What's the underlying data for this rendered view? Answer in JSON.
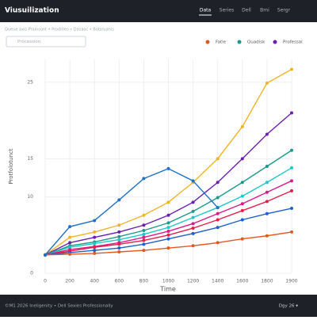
{
  "header": {
    "title": "Viusuilization",
    "nav": [
      "Data",
      "Series",
      "Dell",
      "Bmi",
      "Sergr"
    ]
  },
  "breadcrumb": "Queue axis Prainsont • Prodities • Dasaoc • Botsruanis",
  "search": {
    "placeholder": "Procession"
  },
  "footer": {
    "left": "©M1 2026 Ineligenity • Dell Sexies Professionally",
    "right": "Dgy 26 ▾"
  },
  "chart_data": {
    "type": "line",
    "x_label": "Time",
    "y_label": "Protfolotunct",
    "categories": [
      "0",
      "200",
      "400",
      "600",
      "800",
      "1000",
      "1200",
      "1400",
      "1600",
      "1800",
      "1900"
    ],
    "ylim": [
      0,
      28
    ],
    "yticks": [
      0,
      10,
      15,
      25
    ],
    "grid": true,
    "series": [
      {
        "color": "#f0b429",
        "values": [
          2.4,
          4.7,
          5.4,
          6.3,
          7.6,
          9.3,
          11.9,
          15.0,
          19.2,
          24.9,
          26.7
        ]
      },
      {
        "name": "Professal",
        "color": "#6a1fb0",
        "values": [
          2.4,
          4.0,
          4.7,
          5.4,
          6.3,
          7.6,
          9.3,
          11.9,
          15.0,
          18.2,
          21.0
        ]
      },
      {
        "name": "Quadisk",
        "color": "#1a9a8a",
        "values": [
          2.4,
          3.6,
          4.1,
          4.8,
          5.6,
          6.6,
          8.1,
          9.9,
          11.9,
          14.0,
          16.1
        ]
      },
      {
        "color": "#1cc8c8",
        "values": [
          2.4,
          3.4,
          3.9,
          4.4,
          5.1,
          6.0,
          7.3,
          8.6,
          10.1,
          11.9,
          13.8
        ]
      },
      {
        "color": "#d81b8c",
        "values": [
          2.4,
          3.1,
          3.5,
          4.0,
          4.7,
          5.5,
          6.5,
          7.8,
          9.1,
          10.6,
          12.1
        ]
      },
      {
        "color": "#e0204a",
        "values": [
          2.4,
          2.9,
          3.4,
          3.8,
          4.3,
          5.0,
          5.9,
          7.0,
          8.2,
          9.4,
          10.8
        ]
      },
      {
        "color": "#1f5fc8",
        "values": [
          2.4,
          2.7,
          3.0,
          3.3,
          3.8,
          4.5,
          5.2,
          6.0,
          7.0,
          7.8,
          8.5
        ]
      },
      {
        "name": "Fatle",
        "color": "#e05a20",
        "values": [
          2.4,
          2.5,
          2.6,
          2.8,
          3.0,
          3.3,
          3.6,
          4.0,
          4.5,
          4.9,
          5.4
        ]
      },
      {
        "color": "#2070c8",
        "values": [
          2.4,
          6.1,
          6.9,
          9.6,
          12.4,
          13.7,
          12.1,
          8.6,
          null,
          null,
          null
        ]
      }
    ]
  }
}
